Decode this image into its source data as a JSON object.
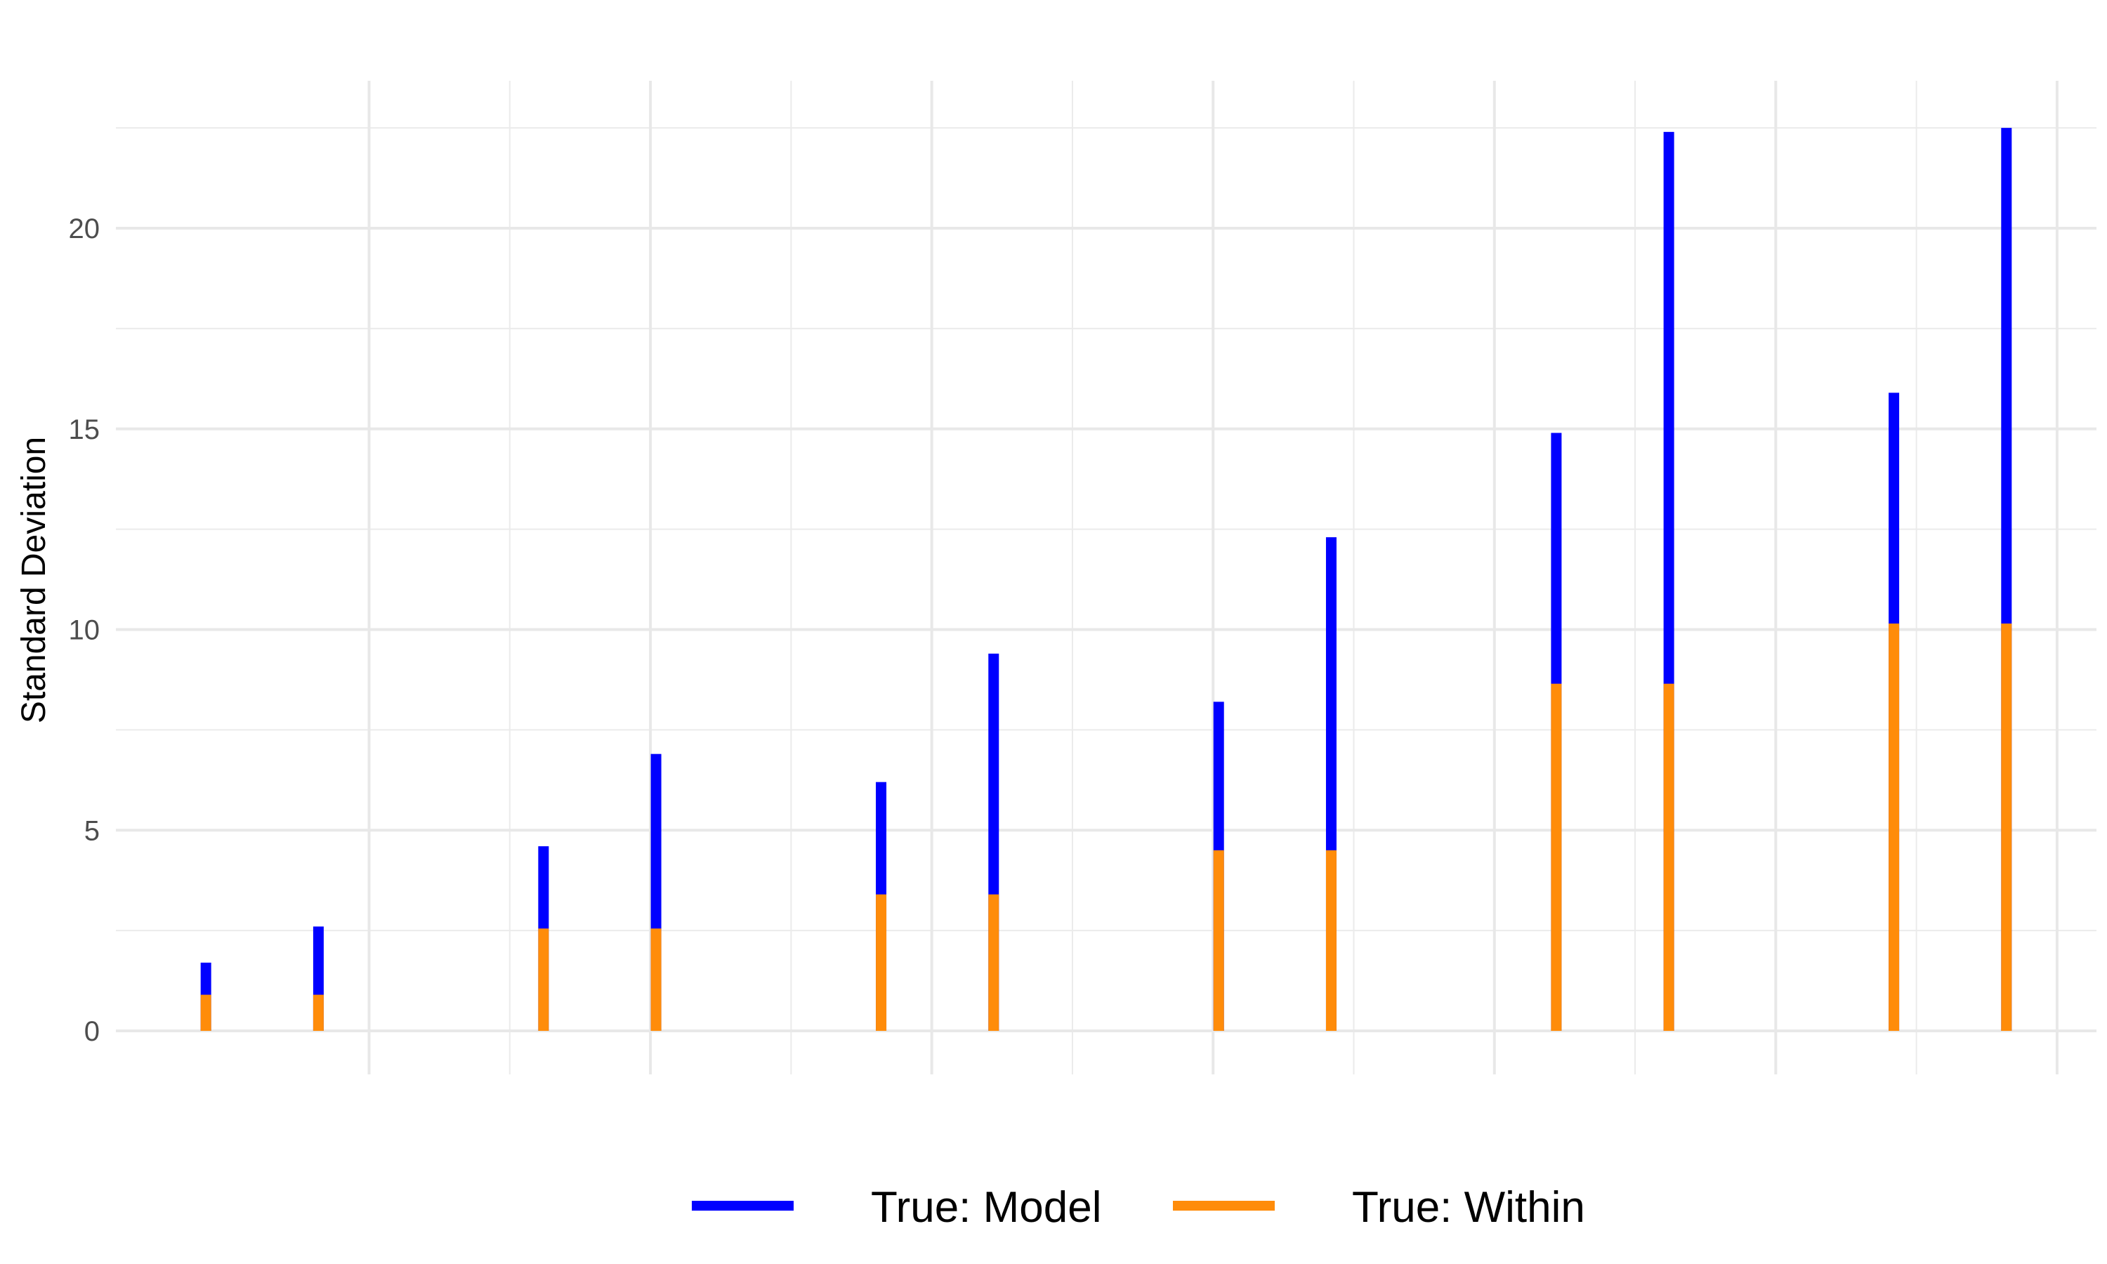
{
  "chart_data": {
    "type": "bar",
    "ylabel": "Standard Deviation",
    "xlabel": "",
    "ylim": [
      0,
      23.5
    ],
    "y_ticks": [
      0,
      5,
      10,
      15,
      20
    ],
    "x_domain": [
      0.1,
      7.14
    ],
    "x_major_breaks": [
      1,
      2,
      3,
      4,
      5,
      6,
      7
    ],
    "x_minor_breaks": [
      1.5,
      2.5,
      3.5,
      4.5,
      5.5,
      6.5
    ],
    "grid": true,
    "legend_position": "bottom",
    "series": [
      {
        "name": "True: Model",
        "color": "#0000ff",
        "x": [
          0.42,
          0.82,
          1.62,
          2.02,
          2.82,
          3.22,
          4.02,
          4.42,
          5.22,
          5.62,
          6.42,
          6.82
        ],
        "values": [
          1.7,
          2.6,
          4.6,
          6.9,
          6.2,
          9.4,
          8.2,
          12.3,
          14.9,
          22.4,
          15.9,
          22.5
        ]
      },
      {
        "name": "True: Within",
        "color": "#ff8c0a",
        "x": [
          0.42,
          0.82,
          1.62,
          2.02,
          2.82,
          3.22,
          4.02,
          4.42,
          5.22,
          5.62,
          6.42,
          6.82
        ],
        "values": [
          0.9,
          0.9,
          2.55,
          2.55,
          3.4,
          3.4,
          4.5,
          4.5,
          8.65,
          8.65,
          10.15,
          10.15
        ]
      }
    ]
  }
}
